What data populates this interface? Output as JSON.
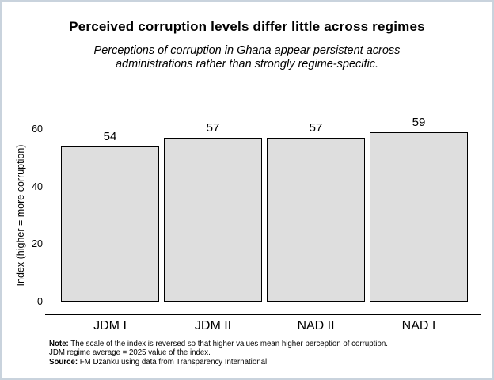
{
  "title": "Perceived corruption levels differ little across regimes",
  "subtitle_lines": [
    "Perceptions of corruption in Ghana appear persistent across",
    "administrations rather than strongly regime-specific."
  ],
  "chart_data": {
    "type": "bar",
    "categories": [
      "JDM I",
      "JDM II",
      "NAD II",
      "NAD I"
    ],
    "values": [
      54,
      57,
      57,
      59
    ],
    "value_labels": [
      "54",
      "57",
      "57",
      "59"
    ],
    "title": "Perceived corruption levels differ little across regimes",
    "xlabel": "",
    "ylabel": "Index (higher = more corruption)",
    "yticks": [
      0,
      20,
      40,
      60
    ],
    "ylim": [
      0,
      60
    ],
    "grid": false,
    "legend": false,
    "bar_fill_color": "#dedede",
    "bar_border_color": "#000000",
    "frame_border_color": "#c9d3dd"
  },
  "notes": [
    {
      "bold": "Note:",
      "text": " The scale of the index is reversed so that higher values mean higher perception of corruption."
    },
    {
      "bold": "",
      "text": "JDM regime average = 2025 value of the index."
    },
    {
      "bold": "Source:",
      "text": " FM Dzanku using data from Transparency International."
    }
  ]
}
